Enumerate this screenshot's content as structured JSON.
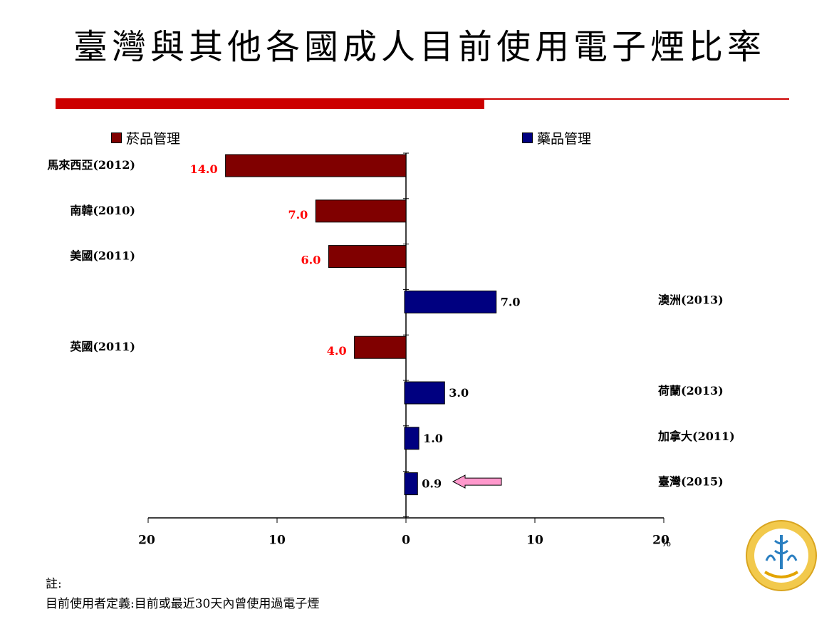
{
  "title": "臺灣與其他各國成人目前使用電子煙比率",
  "legend": [
    {
      "label": "菸品管理",
      "color": "#800000"
    },
    {
      "label": "藥品管理",
      "color": "#000080"
    }
  ],
  "chart_data": {
    "type": "bar",
    "orientation": "horizontal-diverging",
    "categories": [
      "馬來西亞(2012)",
      "南韓(2010)",
      "美國(2011)",
      "澳洲(2013)",
      "英國(2011)",
      "荷蘭(2013)",
      "加拿大(2011)",
      "臺灣(2015)"
    ],
    "series": [
      {
        "name": "菸品管理",
        "color": "#800000",
        "side": "left",
        "label_color": "#ff0000",
        "values": [
          14.0,
          7.0,
          6.0,
          null,
          4.0,
          null,
          null,
          null
        ]
      },
      {
        "name": "藥品管理",
        "color": "#000080",
        "side": "right",
        "label_color": "#000000",
        "values": [
          null,
          null,
          null,
          7.0,
          null,
          3.0,
          1.0,
          0.9
        ]
      }
    ],
    "data_labels": [
      "14.0",
      "7.0",
      "6.0",
      "7.0",
      "4.0",
      "3.0",
      "1.0",
      "0.9"
    ],
    "xaxis_ticks": [
      "20",
      "10",
      "0",
      "10",
      "20"
    ],
    "xaxis_unit": "%",
    "xlim": [
      -20,
      20
    ],
    "highlight": "臺灣(2015)",
    "highlight_arrow_color": "#ff99cc"
  },
  "note": {
    "heading": "註:",
    "text": "目前使用者定義:目前或最近30天內曾使用過電子煙"
  },
  "logo": {
    "icon": "ministry-health-logo"
  }
}
